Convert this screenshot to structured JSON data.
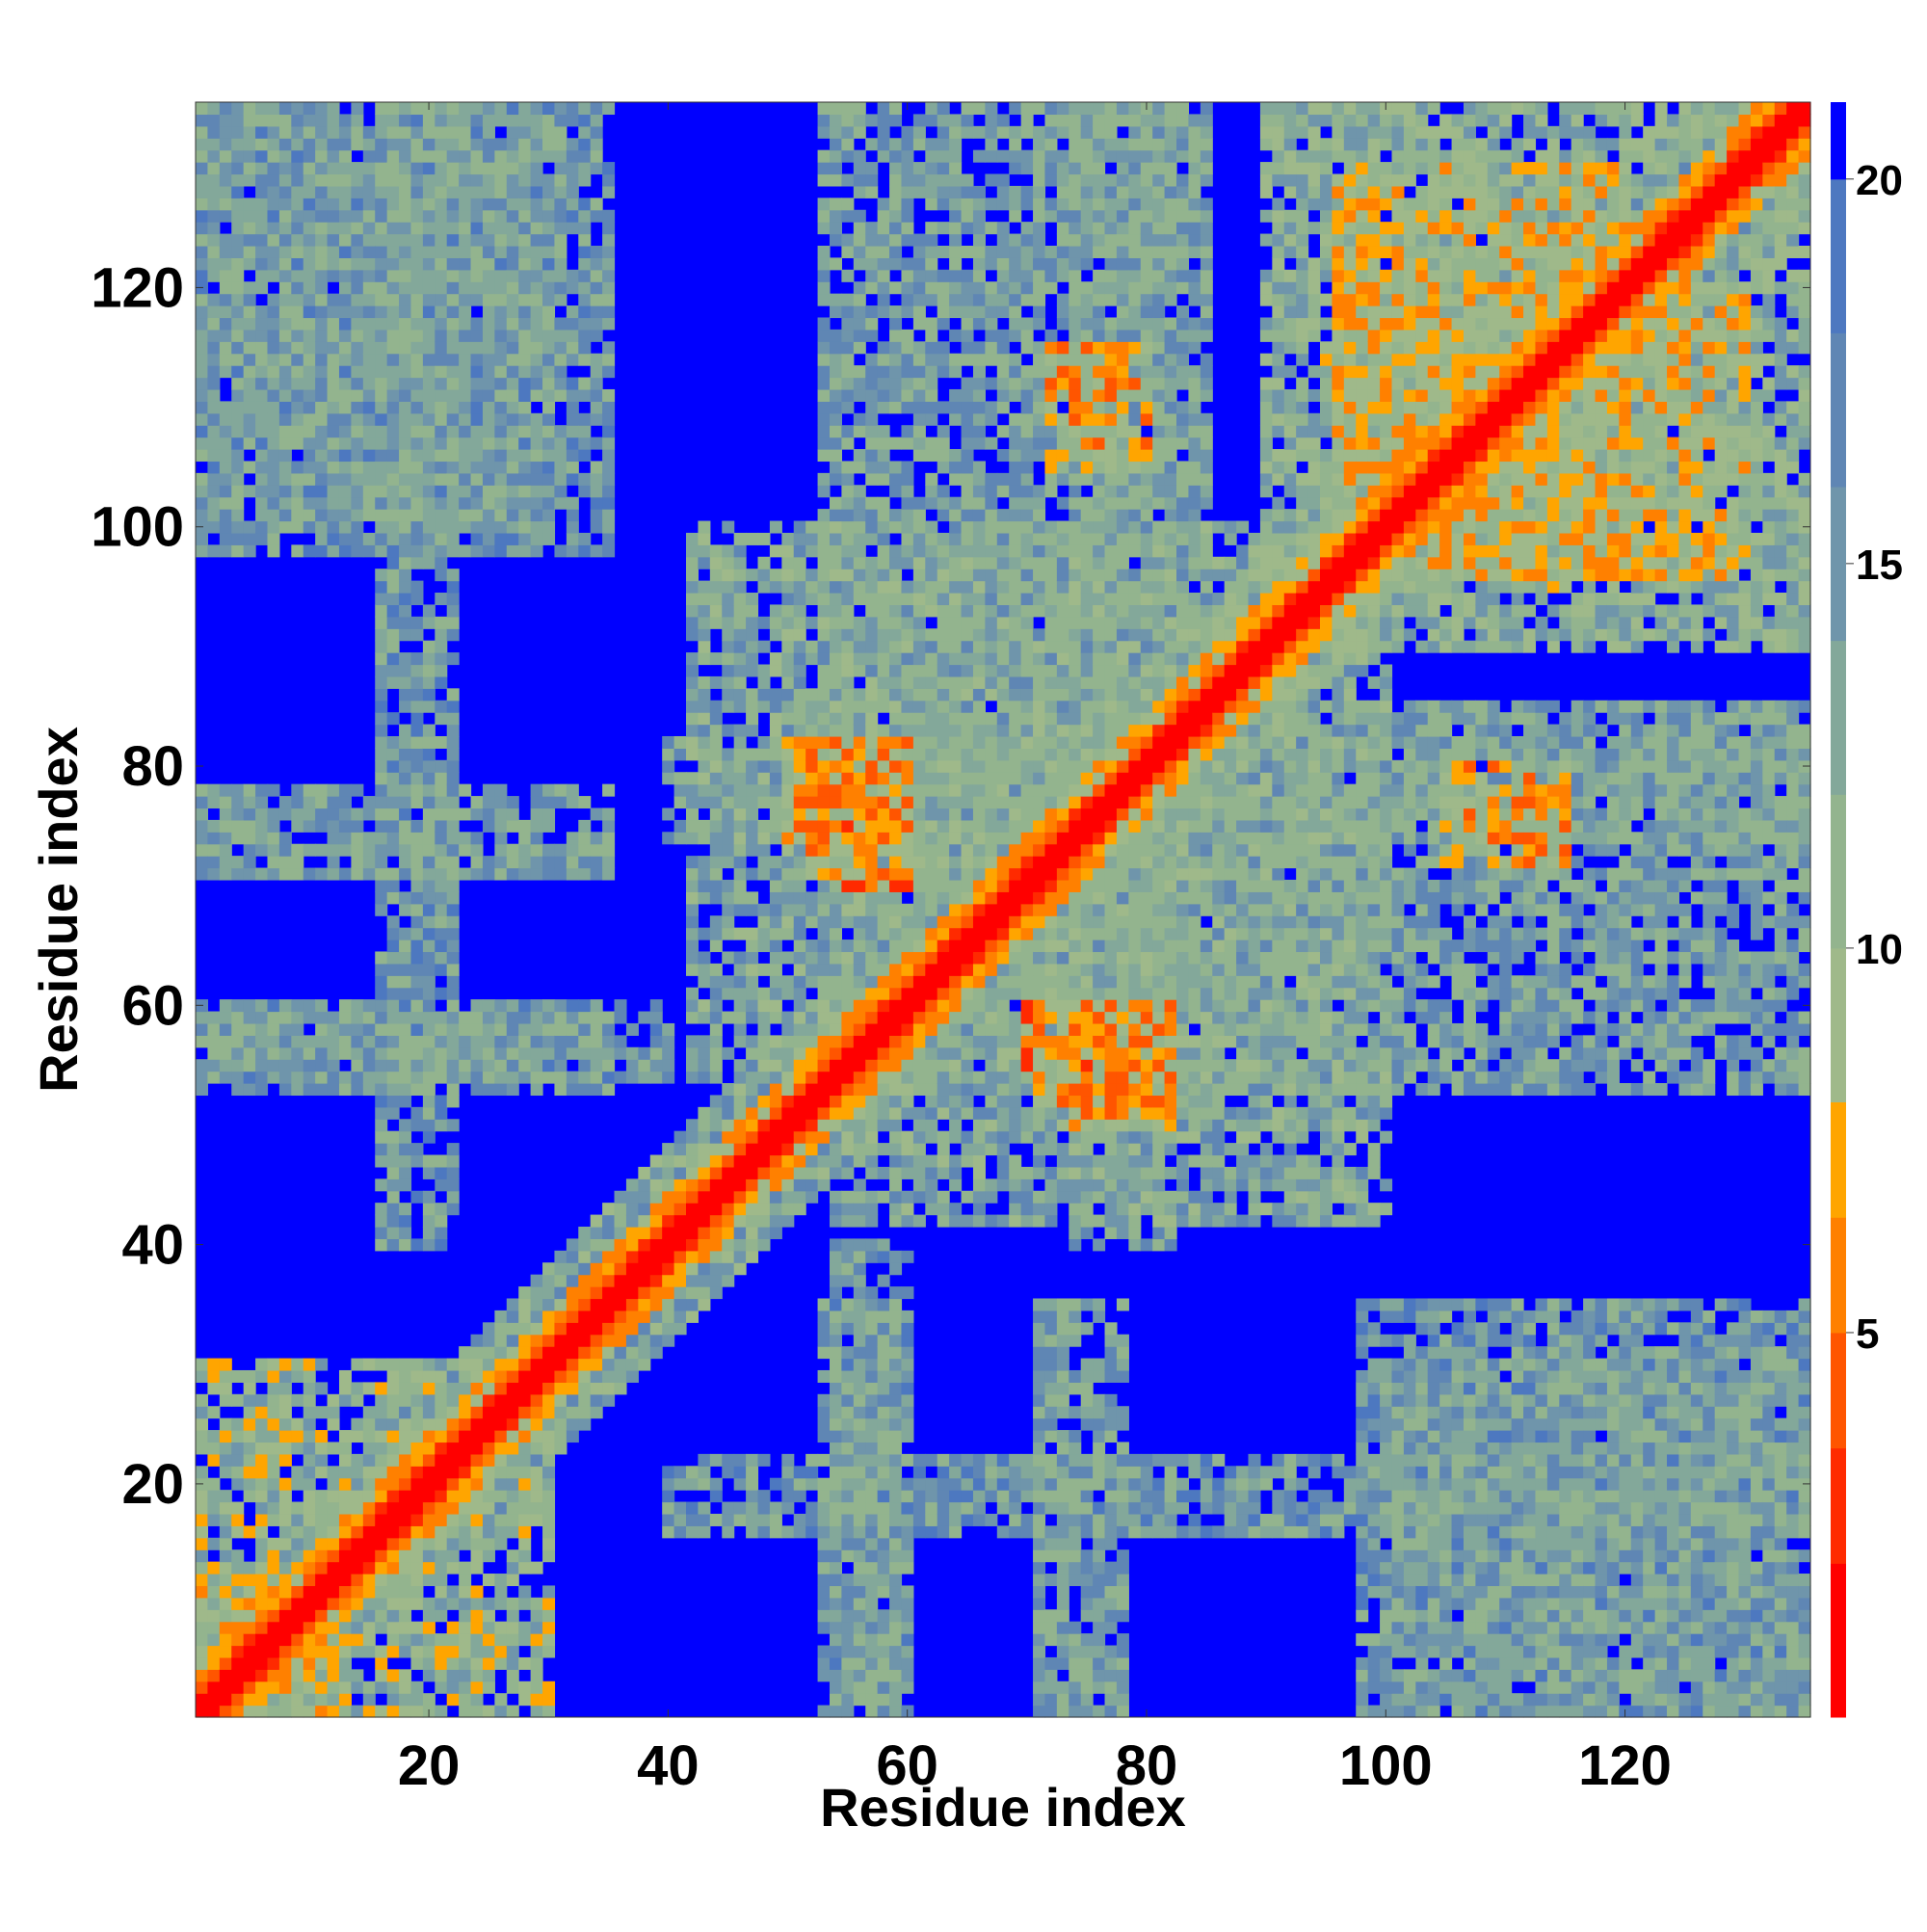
{
  "chart_data": {
    "type": "heatmap",
    "title": "",
    "xlabel": "Residue index",
    "ylabel": "Residue index",
    "n_residues": 135,
    "xlim": [
      1,
      135
    ],
    "ylim": [
      1,
      135
    ],
    "x_ticks": [
      20,
      40,
      60,
      80,
      100,
      120
    ],
    "y_ticks": [
      20,
      40,
      60,
      80,
      100,
      120
    ],
    "colorbar": {
      "range": [
        0,
        21
      ],
      "ticks": [
        5,
        10,
        15,
        20
      ],
      "bands": [
        {
          "max": 2,
          "color": "#ff0000"
        },
        {
          "max": 3.5,
          "color": "#ff2a00"
        },
        {
          "max": 5,
          "color": "#ff5500"
        },
        {
          "max": 6.5,
          "color": "#ff8000"
        },
        {
          "max": 8,
          "color": "#ffa500"
        },
        {
          "max": 10,
          "color": "#9fb98a"
        },
        {
          "max": 12,
          "color": "#93b48e"
        },
        {
          "max": 14,
          "color": "#83a89a"
        },
        {
          "max": 16,
          "color": "#6f95ab"
        },
        {
          "max": 18,
          "color": "#5f86b4"
        },
        {
          "max": 20,
          "color": "#4d78c0"
        },
        {
          "max": 21,
          "color": "#0000ff"
        }
      ]
    },
    "description": "Residue-residue distance map; diagonal distance ~0 (red), background >20 (blue)",
    "contact_blocks": [
      {
        "x": [
          1,
          30
        ],
        "y": [
          1,
          30
        ],
        "d": 11
      },
      {
        "x": [
          1,
          12
        ],
        "y": [
          1,
          12
        ],
        "d": 9
      },
      {
        "x": [
          54,
          100
        ],
        "y": [
          42,
          100
        ],
        "d": 13
      },
      {
        "x": [
          90,
          135
        ],
        "y": [
          90,
          135
        ],
        "d": 12
      },
      {
        "x": [
          54,
          135
        ],
        "y": [
          53,
          85
        ],
        "d": 14
      },
      {
        "x": [
          74,
          82
        ],
        "y": [
          40,
          135
        ],
        "d": 14
      },
      {
        "x": [
          100,
          135
        ],
        "y": [
          1,
          31
        ],
        "d": 15
      },
      {
        "x": [
          1,
          35
        ],
        "y": [
          98,
          135
        ],
        "d": 15
      },
      {
        "x": [
          1,
          35
        ],
        "y": [
          53,
          59
        ],
        "d": 14
      },
      {
        "x": [
          1,
          35
        ],
        "y": [
          71,
          78
        ],
        "d": 14
      },
      {
        "x": [
          16,
          22
        ],
        "y": [
          40,
          135
        ],
        "d": 15
      },
      {
        "x": [
          54,
          60
        ],
        "y": [
          1,
          40
        ],
        "d": 15
      },
      {
        "x": [
          100,
          115
        ],
        "y": [
          95,
          120
        ],
        "d": 11
      },
      {
        "x": [
          73,
          82
        ],
        "y": [
          50,
          60
        ],
        "d": 8
      },
      {
        "x": [
          52,
          60
        ],
        "y": [
          70,
          82
        ],
        "d": 7
      },
      {
        "x": [
          104,
          130
        ],
        "y": [
          96,
          120
        ],
        "d": 9
      },
      {
        "x": [
          105,
          115
        ],
        "y": [
          72,
          80
        ],
        "d": 8
      }
    ]
  }
}
